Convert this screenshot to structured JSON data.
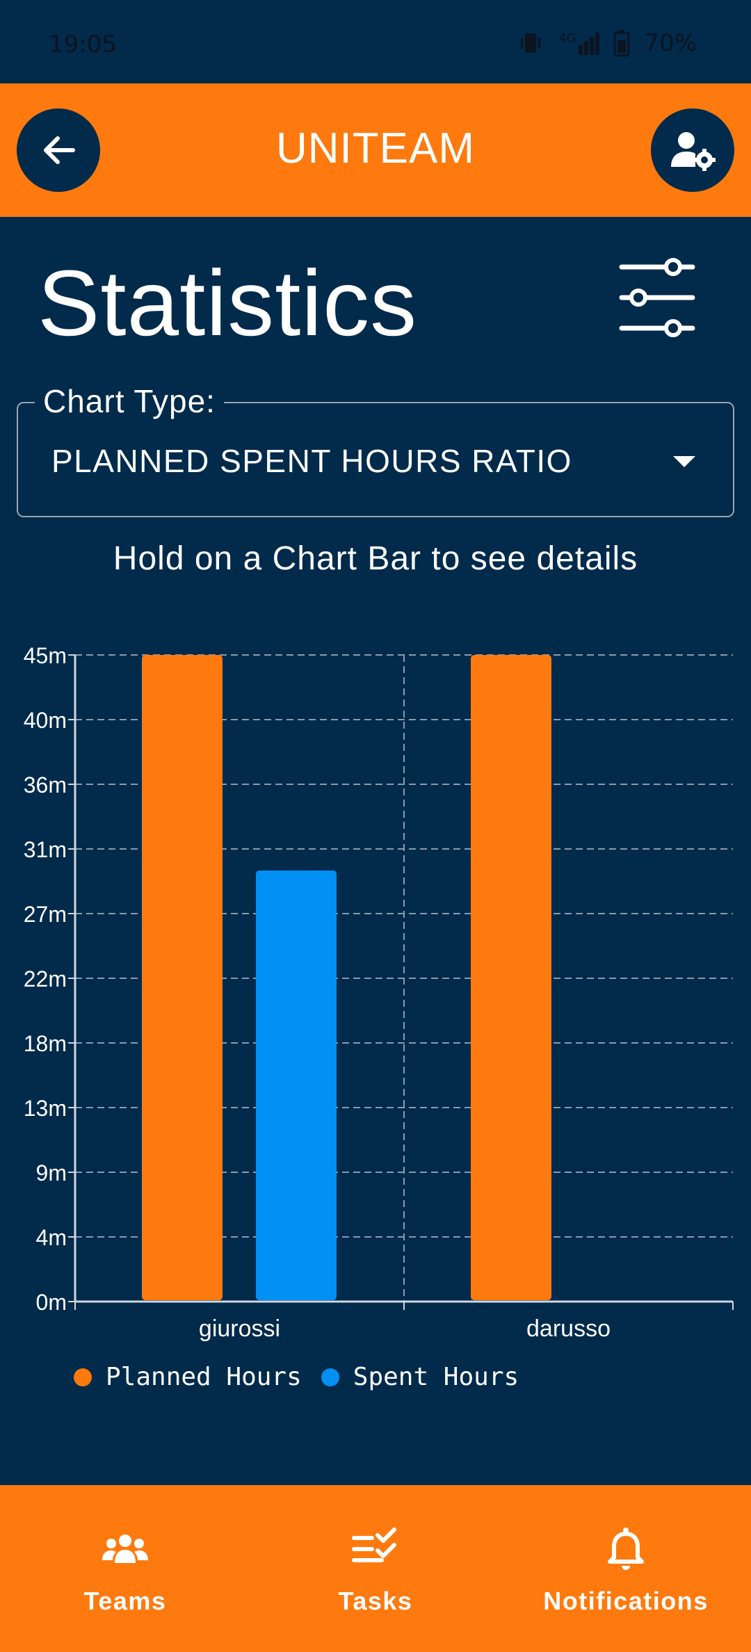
{
  "status_bar": {
    "time": "19:05",
    "network": "4G",
    "battery": "70%"
  },
  "app_bar": {
    "title": "UNITEAM",
    "back_icon": "arrow-left-icon",
    "settings_icon": "user-gear-icon"
  },
  "page": {
    "title": "Statistics",
    "filter_icon": "sliders-icon"
  },
  "chart_type": {
    "label": "Chart Type:",
    "value": "PLANNED SPENT HOURS RATIO"
  },
  "hint": "Hold on a Chart Bar to see details",
  "colors": {
    "background": "#012a4b",
    "accent": "#fe7a0e",
    "planned": "#fe7a0e",
    "spent": "#0390f5"
  },
  "chart_data": {
    "type": "bar",
    "categories": [
      "giurossi",
      "darusso"
    ],
    "series": [
      {
        "name": "Planned Hours",
        "values": [
          45,
          45
        ]
      },
      {
        "name": "Spent Hours",
        "values": [
          30,
          0
        ]
      }
    ],
    "y_ticks": [
      "0m",
      "4m",
      "9m",
      "13m",
      "18m",
      "22m",
      "27m",
      "31m",
      "36m",
      "40m",
      "45m"
    ],
    "ylim": [
      0,
      45
    ],
    "grid": true,
    "legend_position": "bottom-left"
  },
  "bottom_nav": {
    "items": [
      {
        "label": "Teams",
        "icon": "teams-icon"
      },
      {
        "label": "Tasks",
        "icon": "tasks-icon"
      },
      {
        "label": "Notifications",
        "icon": "bell-icon"
      }
    ]
  }
}
